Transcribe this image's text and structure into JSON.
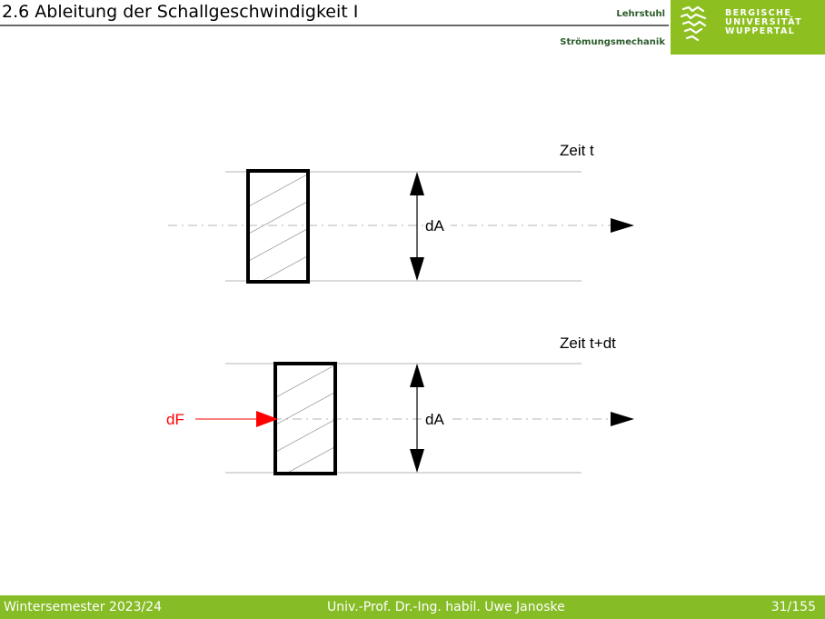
{
  "header": {
    "title": "2.6 Ableitung der Schallgeschwindigkeit I",
    "chair_line1": "Lehrstuhl",
    "chair_line2": "Strömungsmechanik",
    "university": [
      "BERGISCHE",
      "UNIVERSITÄT",
      "WUPPERTAL"
    ],
    "brand_color": "#8cbf1f"
  },
  "diagram": {
    "panel_top_label": "Zeit t",
    "panel_bottom_label": "Zeit t+dt",
    "area_label_top": "dA",
    "area_label_bottom": "dA",
    "force_label": "dF",
    "force_color": "#ff0000"
  },
  "footer": {
    "semester": "Wintersemester 2023/24",
    "author": "Univ.-Prof. Dr.-Ing. habil. Uwe Janoske",
    "page": "31/155"
  }
}
